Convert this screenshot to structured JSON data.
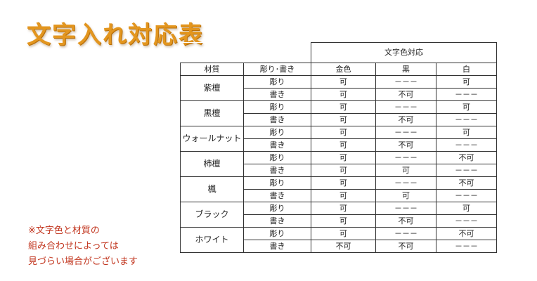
{
  "title": "文字入れ対応表",
  "table": {
    "group_header": "文字色対応",
    "col_material": "材質",
    "col_type": "彫り･書き",
    "col_gold": "金色",
    "col_black": "黒",
    "col_white": "白",
    "rows": [
      {
        "material": "紫檀",
        "rows": [
          {
            "type": "彫り",
            "gold": "可",
            "black": "－－－",
            "white": "可"
          },
          {
            "type": "書き",
            "gold": "可",
            "black": "不可",
            "white": "－－－"
          }
        ]
      },
      {
        "material": "黒檀",
        "rows": [
          {
            "type": "彫り",
            "gold": "可",
            "black": "－－－",
            "white": "可"
          },
          {
            "type": "書き",
            "gold": "可",
            "black": "不可",
            "white": "－－－"
          }
        ]
      },
      {
        "material": "ウォールナット",
        "rows": [
          {
            "type": "彫り",
            "gold": "可",
            "black": "－－－",
            "white": "可"
          },
          {
            "type": "書き",
            "gold": "可",
            "black": "不可",
            "white": "－－－"
          }
        ]
      },
      {
        "material": "柿檀",
        "rows": [
          {
            "type": "彫り",
            "gold": "可",
            "black": "－－－",
            "white": "不可"
          },
          {
            "type": "書き",
            "gold": "可",
            "black": "可",
            "white": "－－－"
          }
        ]
      },
      {
        "material": "楓",
        "rows": [
          {
            "type": "彫り",
            "gold": "可",
            "black": "－－－",
            "white": "不可"
          },
          {
            "type": "書き",
            "gold": "可",
            "black": "可",
            "white": "－－－"
          }
        ]
      },
      {
        "material": "ブラック",
        "rows": [
          {
            "type": "彫り",
            "gold": "可",
            "black": "－－－",
            "white": "可"
          },
          {
            "type": "書き",
            "gold": "可",
            "black": "不可",
            "white": "－－－"
          }
        ]
      },
      {
        "material": "ホワイト",
        "rows": [
          {
            "type": "彫り",
            "gold": "可",
            "black": "－－－",
            "white": "不可"
          },
          {
            "type": "書き",
            "gold": "不可",
            "black": "不可",
            "white": "－－－"
          }
        ]
      }
    ]
  },
  "note": {
    "line1": "※文字色と材質の",
    "line2": "組み合わせによっては",
    "line3": "見づらい場合がございます"
  },
  "colors": {
    "title": "#e3961f",
    "note": "#c2361f",
    "border": "#333333"
  }
}
